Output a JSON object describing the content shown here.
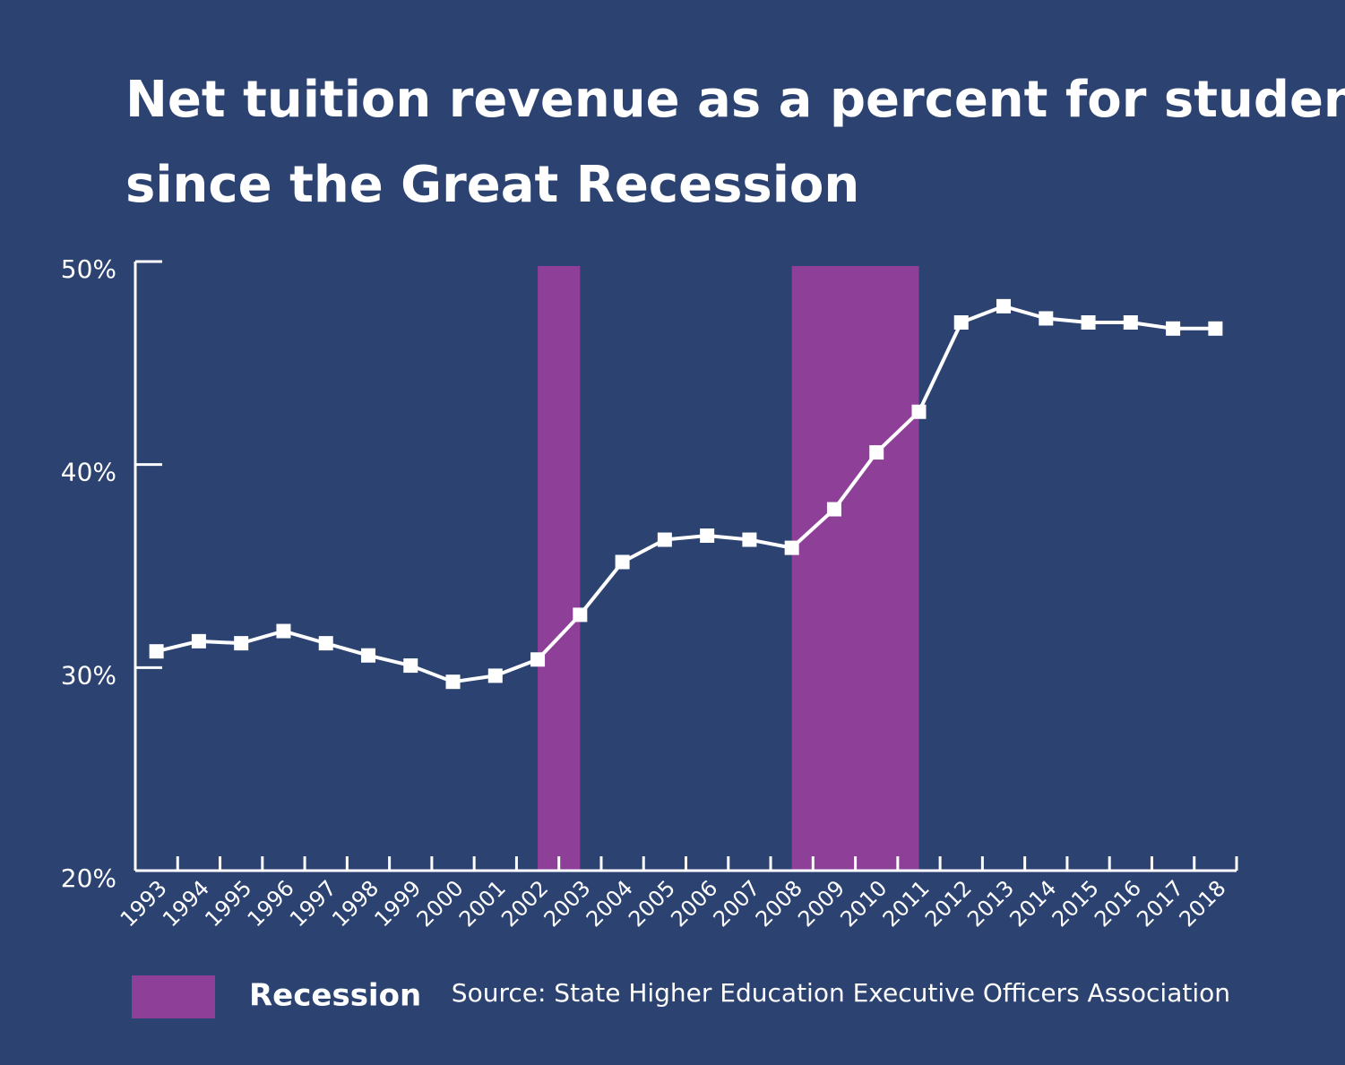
{
  "chart_data": {
    "type": "line",
    "title": [
      "Net tuition revenue as a percent for students",
      "since the Great Recession"
    ],
    "categories": [
      "1993",
      "1994",
      "1995",
      "1996",
      "1997",
      "1998",
      "1999",
      "2000",
      "2001",
      "2002",
      "2003",
      "2004",
      "2005",
      "2006",
      "2007",
      "2008",
      "2009",
      "2010",
      "2011",
      "2012",
      "2013",
      "2014",
      "2015",
      "2016",
      "2017",
      "2018"
    ],
    "series": [
      {
        "color": "#ffffff",
        "values": [
          30.8,
          31.3,
          31.2,
          31.8,
          31.2,
          30.6,
          30.1,
          29.3,
          29.6,
          30.4,
          32.6,
          35.2,
          36.3,
          36.5,
          36.3,
          35.9,
          37.8,
          40.6,
          42.6,
          47.0,
          47.8,
          47.2,
          47.0,
          47.0,
          46.7,
          46.7
        ]
      }
    ],
    "ylim": [
      20,
      50
    ],
    "yticks": [
      {
        "value": 20,
        "label": "20%"
      },
      {
        "value": 30,
        "label": "30%"
      },
      {
        "value": 40,
        "label": "40%"
      },
      {
        "value": 50,
        "label": "50%"
      }
    ],
    "recessions": [
      {
        "start": "2002",
        "end": "2003"
      },
      {
        "start": "2008",
        "end": "2011"
      }
    ],
    "recession_color": "#8e3f98",
    "legend_label": "Recession",
    "source": "Source: State Higher Education Executive Officers Association"
  }
}
